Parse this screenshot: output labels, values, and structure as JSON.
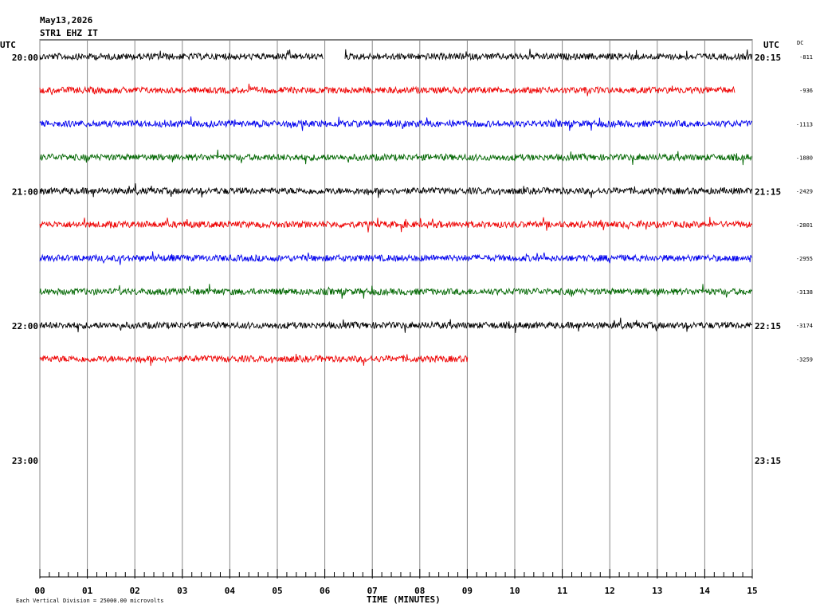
{
  "header": {
    "date": "May13,2026",
    "station": "STR1 EHZ IT"
  },
  "left_axis": {
    "title": "UTC",
    "labels": [
      "20:00",
      "21:00",
      "22:00",
      "23:00"
    ]
  },
  "right_axis": {
    "title": "UTC",
    "labels": [
      "20:15",
      "21:15",
      "22:15",
      "23:15"
    ]
  },
  "dc": {
    "title": "DC",
    "values": [
      "-811",
      "-936",
      "-1113",
      "-1880",
      "-2429",
      "-2801",
      "-2955",
      "-3138",
      "-3174",
      "-3259"
    ]
  },
  "x_axis": {
    "title": "TIME (MINUTES)",
    "ticks": [
      "00",
      "01",
      "02",
      "03",
      "04",
      "05",
      "06",
      "07",
      "08",
      "09",
      "10",
      "11",
      "12",
      "13",
      "14",
      "15"
    ]
  },
  "footer": "Each Vertical Division = 25000.00 microvolts"
}
